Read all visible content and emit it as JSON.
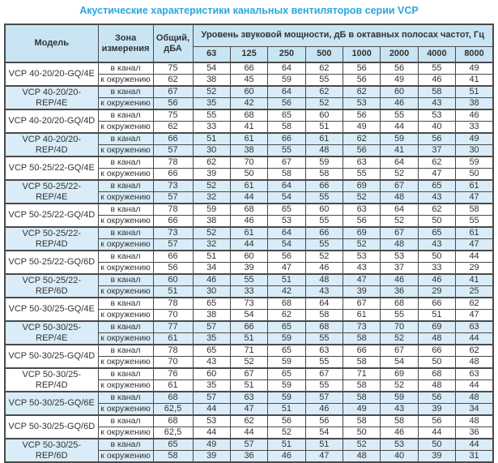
{
  "title": "Акустические характеристики канальных вентиляторов  серии VCP",
  "colors": {
    "title": "#29a8df",
    "header_bg": "#c9e5f4",
    "row_tint_bg": "#d9ecf8",
    "border": "#4a4a4a",
    "text": "#333333"
  },
  "table": {
    "headers": {
      "model": "Модель",
      "zone": "Зона измерения",
      "total": "Общий, дБА",
      "band_group": "Уровень звуковой мощности, дБ в октавных полосах частот, Гц",
      "bands": [
        "63",
        "125",
        "250",
        "500",
        "1000",
        "2000",
        "4000",
        "8000"
      ]
    },
    "zone_labels": {
      "duct": "в канал",
      "ambient": "к окружению"
    },
    "models": [
      {
        "name": "VCP 40-20/20-GQ/4E",
        "tint": false,
        "rows": [
          {
            "zone": "в канал",
            "total": "75",
            "levels": [
              54,
              66,
              64,
              62,
              56,
              56,
              55,
              49
            ]
          },
          {
            "zone": "к окружению",
            "total": "62",
            "levels": [
              38,
              45,
              59,
              55,
              56,
              49,
              46,
              41
            ]
          }
        ]
      },
      {
        "name": "VCP 40-20/20-REP/4E",
        "tint": true,
        "rows": [
          {
            "zone": "в канал",
            "total": "67",
            "levels": [
              52,
              60,
              64,
              62,
              62,
              60,
              58,
              51
            ]
          },
          {
            "zone": "к окружению",
            "total": "56",
            "levels": [
              35,
              42,
              56,
              52,
              53,
              46,
              43,
              38
            ]
          }
        ]
      },
      {
        "name": "VCP 40-20/20-GQ/4D",
        "tint": false,
        "rows": [
          {
            "zone": "в канал",
            "total": "75",
            "levels": [
              55,
              68,
              65,
              60,
              56,
              55,
              53,
              46
            ]
          },
          {
            "zone": "к окружению",
            "total": "62",
            "levels": [
              33,
              41,
              58,
              51,
              49,
              44,
              40,
              33
            ]
          }
        ]
      },
      {
        "name": "VCP 40-20/20-REP/4D",
        "tint": true,
        "rows": [
          {
            "zone": "в канал",
            "total": "66",
            "levels": [
              51,
              61,
              66,
              61,
              62,
              59,
              56,
              49
            ]
          },
          {
            "zone": "к окружению",
            "total": "57",
            "levels": [
              30,
              38,
              55,
              48,
              56,
              41,
              37,
              30
            ]
          }
        ]
      },
      {
        "name": "VCP 50-25/22-GQ/4E",
        "tint": false,
        "rows": [
          {
            "zone": "в канал",
            "total": "78",
            "levels": [
              62,
              70,
              67,
              59,
              63,
              64,
              62,
              59
            ]
          },
          {
            "zone": "к окружению",
            "total": "66",
            "levels": [
              39,
              50,
              58,
              58,
              55,
              52,
              47,
              50
            ]
          }
        ]
      },
      {
        "name": "VCP 50-25/22-REP/4E",
        "tint": true,
        "rows": [
          {
            "zone": "в канал",
            "total": "73",
            "levels": [
              52,
              61,
              64,
              66,
              69,
              67,
              65,
              61
            ]
          },
          {
            "zone": "к окружению",
            "total": "57",
            "levels": [
              32,
              44,
              54,
              55,
              52,
              48,
              43,
              47
            ]
          }
        ]
      },
      {
        "name": "VCP 50-25/22-GQ/4D",
        "tint": false,
        "rows": [
          {
            "zone": "в канал",
            "total": "78",
            "levels": [
              59,
              68,
              65,
              60,
              63,
              64,
              62,
              58
            ]
          },
          {
            "zone": "к окружению",
            "total": "66",
            "levels": [
              38,
              46,
              53,
              55,
              56,
              52,
              50,
              55
            ]
          }
        ]
      },
      {
        "name": "VCP 50-25/22-REP/4D",
        "tint": true,
        "rows": [
          {
            "zone": "в канал",
            "total": "73",
            "levels": [
              52,
              61,
              64,
              66,
              69,
              67,
              65,
              61
            ]
          },
          {
            "zone": "к окружению",
            "total": "57",
            "levels": [
              32,
              44,
              54,
              55,
              52,
              48,
              43,
              47
            ]
          }
        ]
      },
      {
        "name": "VCP 50-25/22-GQ/6D",
        "tint": false,
        "rows": [
          {
            "zone": "в канал",
            "total": "66",
            "levels": [
              51,
              60,
              56,
              52,
              53,
              53,
              50,
              44
            ]
          },
          {
            "zone": "к окружению",
            "total": "56",
            "levels": [
              34,
              39,
              47,
              46,
              43,
              37,
              33,
              29
            ]
          }
        ]
      },
      {
        "name": "VCP 50-25/22-REP/6D",
        "tint": true,
        "rows": [
          {
            "zone": "в канал",
            "total": "60",
            "levels": [
              46,
              55,
              51,
              48,
              47,
              46,
              46,
              41
            ]
          },
          {
            "zone": "к окружению",
            "total": "51",
            "levels": [
              30,
              33,
              42,
              43,
              39,
              36,
              29,
              25
            ]
          }
        ]
      },
      {
        "name": "VCP 50-30/25-GQ/4E",
        "tint": false,
        "rows": [
          {
            "zone": "в канал",
            "total": "78",
            "levels": [
              65,
              73,
              68,
              64,
              67,
              68,
              66,
              62
            ]
          },
          {
            "zone": "к окружению",
            "total": "70",
            "levels": [
              38,
              54,
              62,
              58,
              61,
              55,
              51,
              47
            ]
          }
        ]
      },
      {
        "name": "VCP 50-30/25-REP/4E",
        "tint": true,
        "rows": [
          {
            "zone": "в канал",
            "total": "77",
            "levels": [
              57,
              66,
              65,
              68,
              73,
              70,
              69,
              63
            ]
          },
          {
            "zone": "к окружению",
            "total": "61",
            "levels": [
              35,
              51,
              59,
              55,
              58,
              52,
              48,
              44
            ]
          }
        ]
      },
      {
        "name": "VCP 50-30/25-GQ/4D",
        "tint": false,
        "rows": [
          {
            "zone": "в канал",
            "total": "78",
            "levels": [
              65,
              71,
              65,
              63,
              66,
              67,
              66,
              62
            ]
          },
          {
            "zone": "к окружению",
            "total": "70",
            "levels": [
              43,
              52,
              59,
              55,
              58,
              54,
              50,
              48
            ]
          }
        ]
      },
      {
        "name": "VCP 50-30/25-REP/4D",
        "tint": false,
        "rows": [
          {
            "zone": "в канал",
            "total": "76",
            "levels": [
              60,
              67,
              65,
              67,
              71,
              69,
              68,
              63
            ]
          },
          {
            "zone": "к окружению",
            "total": "61",
            "levels": [
              35,
              51,
              59,
              55,
              58,
              52,
              48,
              44
            ]
          }
        ]
      },
      {
        "name": "VCP 50-30/25-GQ/6E",
        "tint": true,
        "rows": [
          {
            "zone": "в канал",
            "total": "68",
            "levels": [
              57,
              63,
              59,
              57,
              58,
              59,
              56,
              48
            ]
          },
          {
            "zone": "к окружению",
            "total": "62,5",
            "levels": [
              44,
              47,
              51,
              46,
              49,
              43,
              39,
              34
            ]
          }
        ]
      },
      {
        "name": "VCP 50-30/25-GQ/6D",
        "tint": false,
        "rows": [
          {
            "zone": "в канал",
            "total": "68",
            "levels": [
              53,
              62,
              56,
              56,
              58,
              58,
              56,
              48
            ]
          },
          {
            "zone": "к окружению",
            "total": "62,5",
            "levels": [
              44,
              44,
              52,
              54,
              50,
              46,
              44,
              36
            ]
          }
        ]
      },
      {
        "name": "VCP 50-30/25-REP/6D",
        "tint": true,
        "rows": [
          {
            "zone": "в канал",
            "total": "65",
            "levels": [
              49,
              57,
              51,
              51,
              52,
              53,
              50,
              44
            ]
          },
          {
            "zone": "к окружению",
            "total": "58",
            "levels": [
              39,
              36,
              46,
              47,
              48,
              40,
              39,
              31
            ]
          }
        ]
      }
    ]
  }
}
